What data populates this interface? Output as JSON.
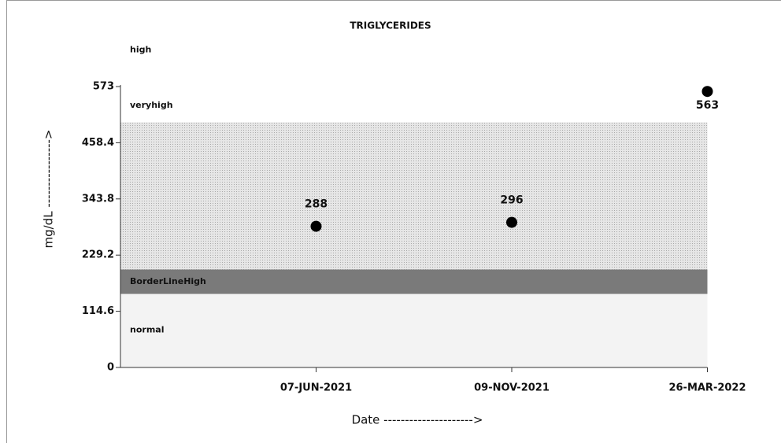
{
  "chart_data": {
    "type": "scatter",
    "title": "TRIGLYCERIDES",
    "x_label": "Date --------------------->",
    "y_label": "mg/dL ---------------->",
    "categories": [
      "07-JUN-2021",
      "09-NOV-2021",
      "26-MAR-2022"
    ],
    "values": [
      288,
      296,
      563
    ],
    "color": "#000000",
    "ylim": [
      0,
      573
    ],
    "yticks": [
      0,
      114.6,
      229.2,
      343.8,
      458.4,
      573
    ],
    "bands": [
      {
        "name": "normal",
        "from": 0,
        "to": 150,
        "color": "#f3f3f3"
      },
      {
        "name": "BorderLineHigh",
        "from": 150,
        "to": 200,
        "color": "#7a7a7a"
      },
      {
        "name": "high",
        "from": 200,
        "to": 500,
        "color": "#dcdcdc"
      },
      {
        "name": "veryhigh",
        "from": 500,
        "to": 573,
        "color": "#ffffff"
      }
    ]
  }
}
